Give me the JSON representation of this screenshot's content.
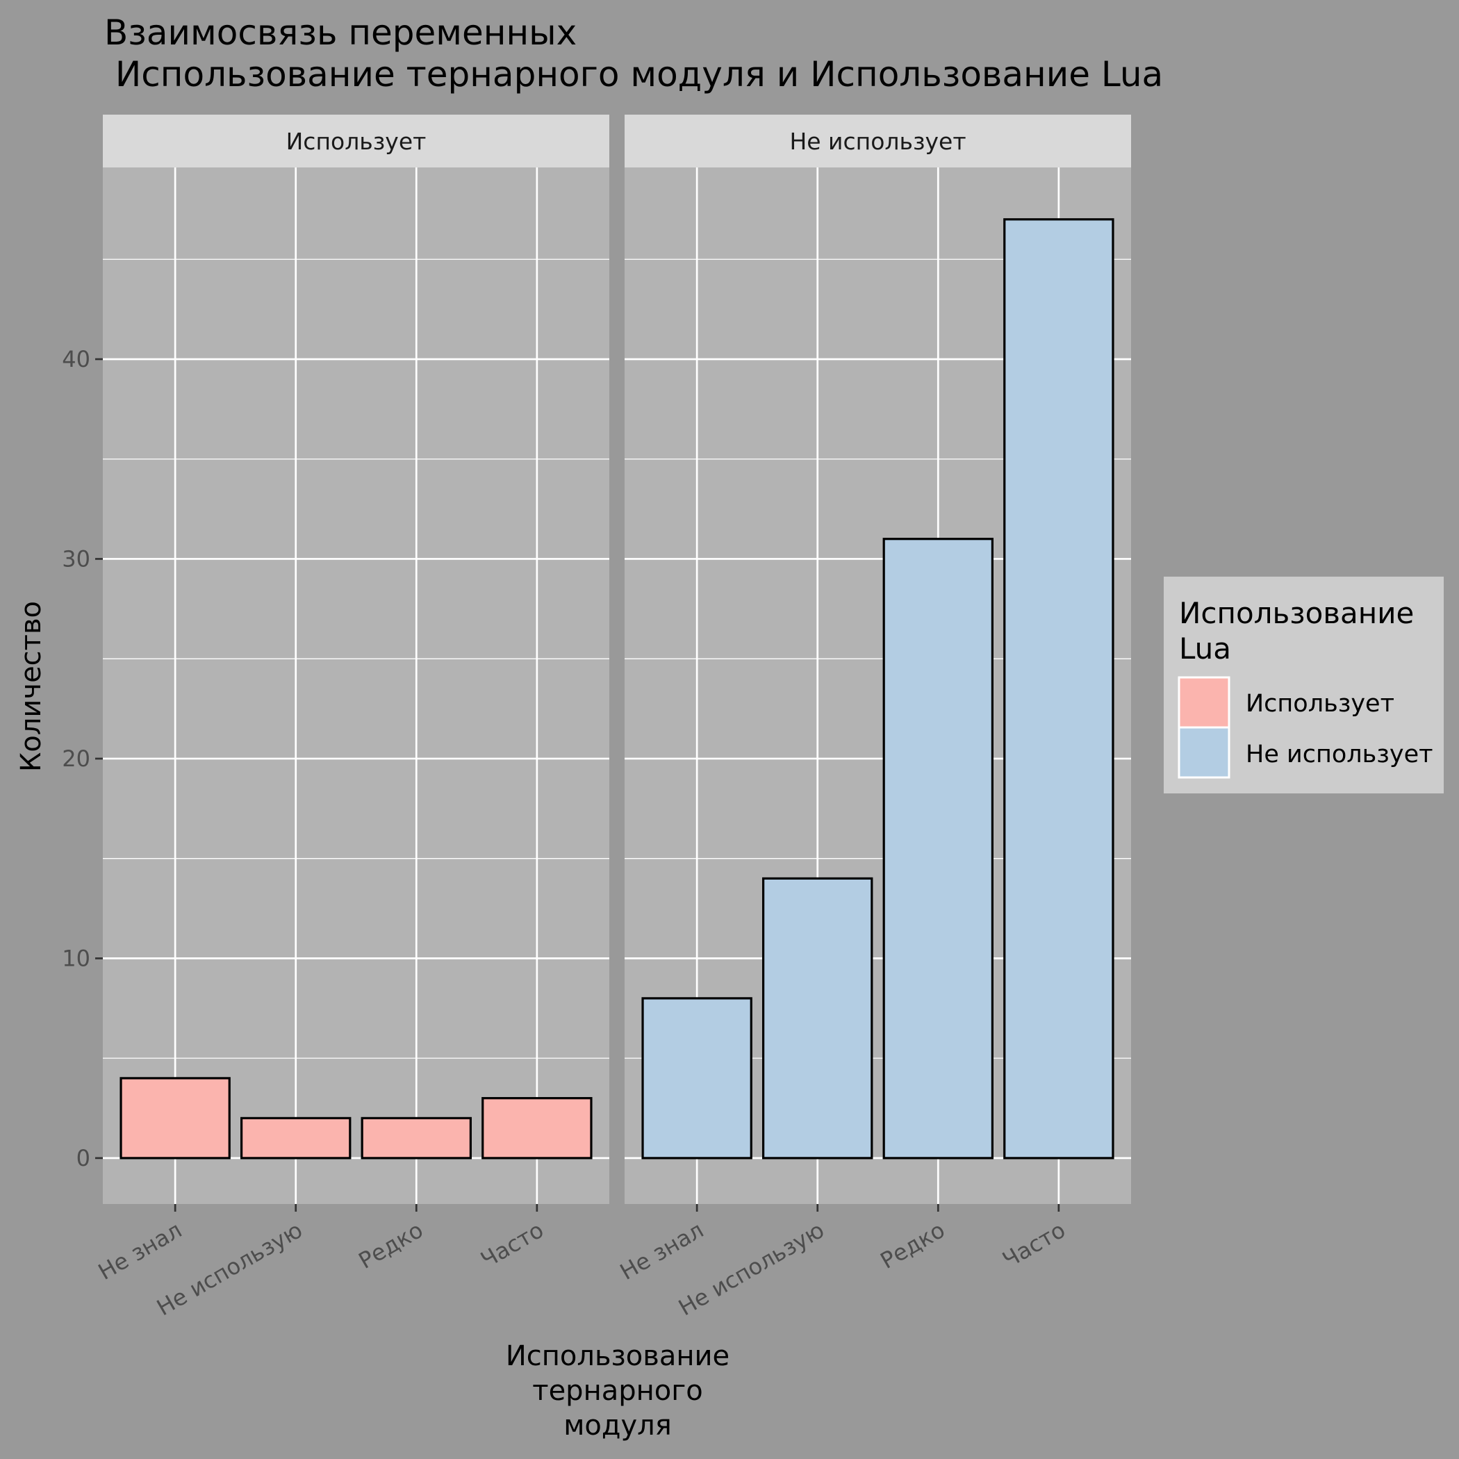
{
  "chart_data": {
    "type": "bar",
    "title_lines": [
      "Взаимосвязь переменных",
      " Использование тернарного модуля и Использование Lua"
    ],
    "xlabel_lines": [
      "Использование",
      "тернарного",
      "модуля"
    ],
    "ylabel": "Количество",
    "categories": [
      "Не знал",
      "Не использую",
      "Редко",
      "Часто"
    ],
    "ylim": [
      -2.3,
      49.6
    ],
    "y_ticks": [
      0,
      10,
      20,
      30,
      40
    ],
    "grid": true,
    "legend_position": "right",
    "legend": {
      "title_lines": [
        "Использование",
        "Lua"
      ],
      "entries": [
        {
          "label": "Использует",
          "color": "#FBB4AE"
        },
        {
          "label": "Не использует",
          "color": "#B3CDE3"
        }
      ]
    },
    "facets": [
      {
        "label": "Использует",
        "color": "#FBB4AE",
        "values": [
          4,
          2,
          2,
          3
        ]
      },
      {
        "label": "Не использует",
        "color": "#B3CDE3",
        "values": [
          8,
          14,
          31,
          47
        ]
      }
    ],
    "colors": {
      "background": "#999999",
      "panel": "#B3B3B3",
      "strip": "#D9D9D9",
      "legend_bg": "#CCCCCC",
      "grid": "#FFFFFF",
      "bar_outline": "#000000"
    }
  }
}
